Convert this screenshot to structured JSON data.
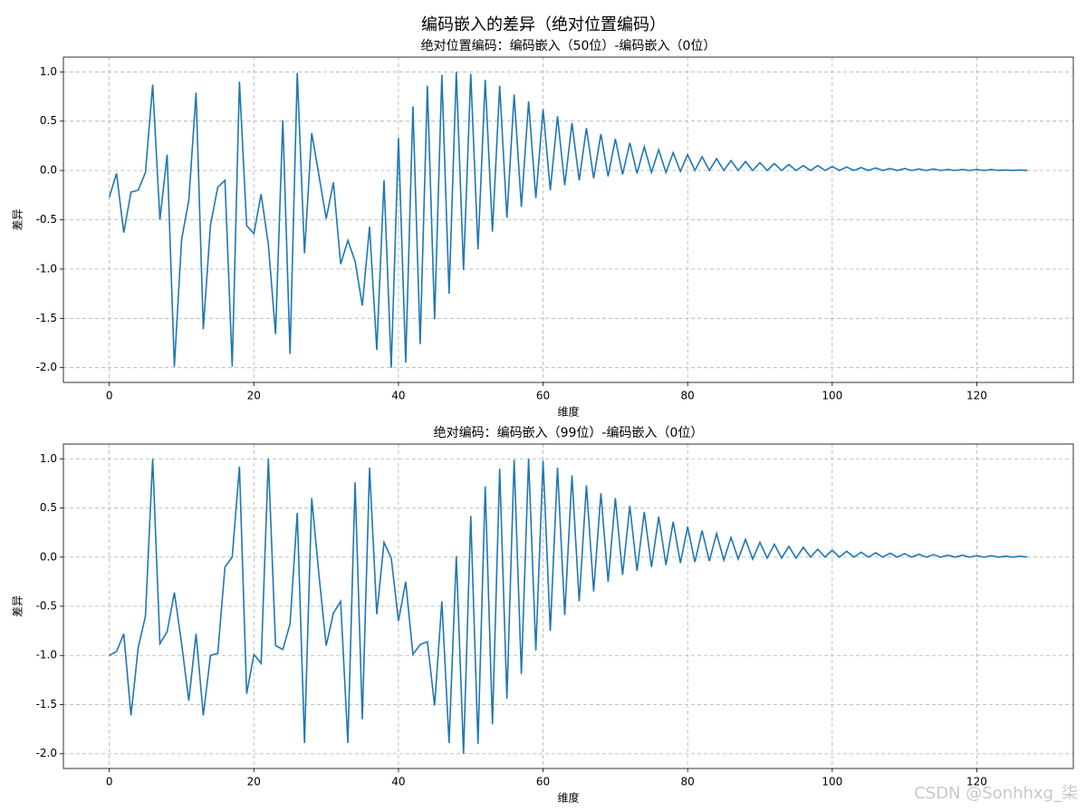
{
  "title": "编码嵌入的差异（绝对位置编码）",
  "watermark": "CSDN @Sonhhxg_柒",
  "chart_data": [
    {
      "type": "line",
      "title": "绝对位置编码：编码嵌入（50位）-编码嵌入（0位）",
      "xlabel": "维度",
      "ylabel": "差异",
      "color": "#1f77b4",
      "grid": true,
      "xlim": [
        -6.35,
        133.35
      ],
      "ylim": [
        -2.15,
        1.15
      ],
      "xticks": [
        0,
        20,
        40,
        60,
        80,
        100,
        120
      ],
      "yticks": [
        {
          "value": -2,
          "label": "-2.0"
        },
        {
          "value": -1.5,
          "label": "-1.5"
        },
        {
          "value": -1,
          "label": "-1.0"
        },
        {
          "value": -0.5,
          "label": "-0.5"
        },
        {
          "value": 0,
          "label": "0.0"
        },
        {
          "value": 0.5,
          "label": "0.5"
        },
        {
          "value": 1,
          "label": "1.0"
        }
      ],
      "x": [
        0,
        1,
        2,
        3,
        4,
        5,
        6,
        7,
        8,
        9,
        10,
        11,
        12,
        13,
        14,
        15,
        16,
        17,
        18,
        19,
        20,
        21,
        22,
        23,
        24,
        25,
        26,
        27,
        28,
        29,
        30,
        31,
        32,
        33,
        34,
        35,
        36,
        37,
        38,
        39,
        40,
        41,
        42,
        43,
        44,
        45,
        46,
        47,
        48,
        49,
        50,
        51,
        52,
        53,
        54,
        55,
        56,
        57,
        58,
        59,
        60,
        61,
        62,
        63,
        64,
        65,
        66,
        67,
        68,
        69,
        70,
        71,
        72,
        73,
        74,
        75,
        76,
        77,
        78,
        79,
        80,
        81,
        82,
        83,
        84,
        85,
        86,
        87,
        88,
        89,
        90,
        91,
        92,
        93,
        94,
        95,
        96,
        97,
        98,
        99,
        100,
        101,
        102,
        103,
        104,
        105,
        106,
        107,
        108,
        109,
        110,
        111,
        112,
        113,
        114,
        115,
        116,
        117,
        118,
        119,
        120,
        121,
        122,
        123,
        124,
        125,
        126,
        127
      ],
      "values": [
        -0.27,
        -0.03,
        -0.63,
        -0.22,
        -0.2,
        -0.02,
        0.87,
        -0.5,
        0.16,
        -1.99,
        -0.7,
        -0.3,
        0.79,
        -1.61,
        -0.55,
        -0.17,
        -0.1,
        -1.99,
        0.9,
        -0.56,
        -0.64,
        -0.24,
        -0.75,
        -1.66,
        0.51,
        -1.86,
        0.99,
        -0.84,
        0.38,
        -0.05,
        -0.49,
        -0.12,
        -0.95,
        -0.71,
        -0.92,
        -1.37,
        -0.57,
        -1.82,
        -0.1,
        -2.0,
        0.33,
        -1.95,
        0.65,
        -1.76,
        0.86,
        -1.51,
        0.97,
        -1.25,
        1.0,
        -1.01,
        0.98,
        -0.8,
        0.92,
        -0.62,
        0.86,
        -0.48,
        0.77,
        -0.37,
        0.7,
        -0.28,
        0.62,
        -0.2,
        0.55,
        -0.15,
        0.48,
        -0.1,
        0.43,
        -0.08,
        0.37,
        -0.06,
        0.32,
        -0.04,
        0.28,
        -0.03,
        0.24,
        -0.02,
        0.21,
        -0.02,
        0.18,
        -0.01,
        0.16,
        0.0,
        0.14,
        0.0,
        0.12,
        0.0,
        0.1,
        0.0,
        0.09,
        0.0,
        0.08,
        0.0,
        0.07,
        0.0,
        0.06,
        0.0,
        0.05,
        0.0,
        0.05,
        0.0,
        0.04,
        0.0,
        0.035,
        0.0,
        0.03,
        0.0,
        0.025,
        0.0,
        0.02,
        0.0,
        0.02,
        0.0,
        0.015,
        0.0,
        0.015,
        0.0,
        0.01,
        0.0,
        0.01,
        0.0,
        0.01,
        0.0,
        0.01,
        0.0,
        0.005,
        0.0,
        0.005,
        0.0
      ]
    },
    {
      "type": "line",
      "title": "绝对编码：编码嵌入（99位）-编码嵌入（0位）",
      "xlabel": "维度",
      "ylabel": "差异",
      "color": "#1f77b4",
      "grid": true,
      "xlim": [
        -6.35,
        133.35
      ],
      "ylim": [
        -2.15,
        1.15
      ],
      "xticks": [
        0,
        20,
        40,
        60,
        80,
        100,
        120
      ],
      "yticks": [
        {
          "value": -2,
          "label": "-2.0"
        },
        {
          "value": -1.5,
          "label": "-1.5"
        },
        {
          "value": -1,
          "label": "-1.0"
        },
        {
          "value": -0.5,
          "label": "-0.5"
        },
        {
          "value": 0,
          "label": "0.0"
        },
        {
          "value": 0.5,
          "label": "0.5"
        },
        {
          "value": 1,
          "label": "1.0"
        }
      ],
      "x": [
        0,
        1,
        2,
        3,
        4,
        5,
        6,
        7,
        8,
        9,
        10,
        11,
        12,
        13,
        14,
        15,
        16,
        17,
        18,
        19,
        20,
        21,
        22,
        23,
        24,
        25,
        26,
        27,
        28,
        29,
        30,
        31,
        32,
        33,
        34,
        35,
        36,
        37,
        38,
        39,
        40,
        41,
        42,
        43,
        44,
        45,
        46,
        47,
        48,
        49,
        50,
        51,
        52,
        53,
        54,
        55,
        56,
        57,
        58,
        59,
        60,
        61,
        62,
        63,
        64,
        65,
        66,
        67,
        68,
        69,
        70,
        71,
        72,
        73,
        74,
        75,
        76,
        77,
        78,
        79,
        80,
        81,
        82,
        83,
        84,
        85,
        86,
        87,
        88,
        89,
        90,
        91,
        92,
        93,
        94,
        95,
        96,
        97,
        98,
        99,
        100,
        101,
        102,
        103,
        104,
        105,
        106,
        107,
        108,
        109,
        110,
        111,
        112,
        113,
        114,
        115,
        116,
        117,
        118,
        119,
        120,
        121,
        122,
        123,
        124,
        125,
        126,
        127
      ],
      "values": [
        -1.0,
        -0.96,
        -0.78,
        -1.61,
        -0.92,
        -0.6,
        1.0,
        -0.88,
        -0.76,
        -0.36,
        -0.88,
        -1.46,
        -0.78,
        -1.61,
        -1.0,
        -0.98,
        -0.1,
        0.0,
        0.92,
        -1.39,
        -0.99,
        -1.08,
        1.0,
        -0.9,
        -0.94,
        -0.68,
        0.45,
        -1.89,
        0.6,
        -0.18,
        -0.9,
        -0.57,
        -0.45,
        -1.89,
        0.76,
        -1.65,
        0.91,
        -0.58,
        0.15,
        -0.01,
        -0.65,
        -0.25,
        -0.99,
        -0.89,
        -0.86,
        -1.51,
        -0.45,
        -1.89,
        0.01,
        -2.0,
        0.42,
        -1.9,
        0.72,
        -1.7,
        0.9,
        -1.44,
        0.99,
        -1.19,
        1.0,
        -0.95,
        0.98,
        -0.75,
        0.91,
        -0.59,
        0.83,
        -0.45,
        0.73,
        -0.35,
        0.65,
        -0.25,
        0.6,
        -0.18,
        0.52,
        -0.14,
        0.46,
        -0.1,
        0.41,
        -0.08,
        0.36,
        -0.06,
        0.31,
        -0.05,
        0.27,
        -0.04,
        0.24,
        -0.03,
        0.2,
        -0.02,
        0.18,
        -0.02,
        0.15,
        -0.01,
        0.13,
        -0.01,
        0.11,
        -0.01,
        0.1,
        0.0,
        0.08,
        0.0,
        0.07,
        0.0,
        0.06,
        0.0,
        0.05,
        0.0,
        0.045,
        0.0,
        0.04,
        0.0,
        0.035,
        0.0,
        0.03,
        0.0,
        0.025,
        0.0,
        0.02,
        0.0,
        0.02,
        0.0,
        0.015,
        0.0,
        0.015,
        0.0,
        0.01,
        0.0,
        0.01,
        0.0
      ]
    }
  ]
}
